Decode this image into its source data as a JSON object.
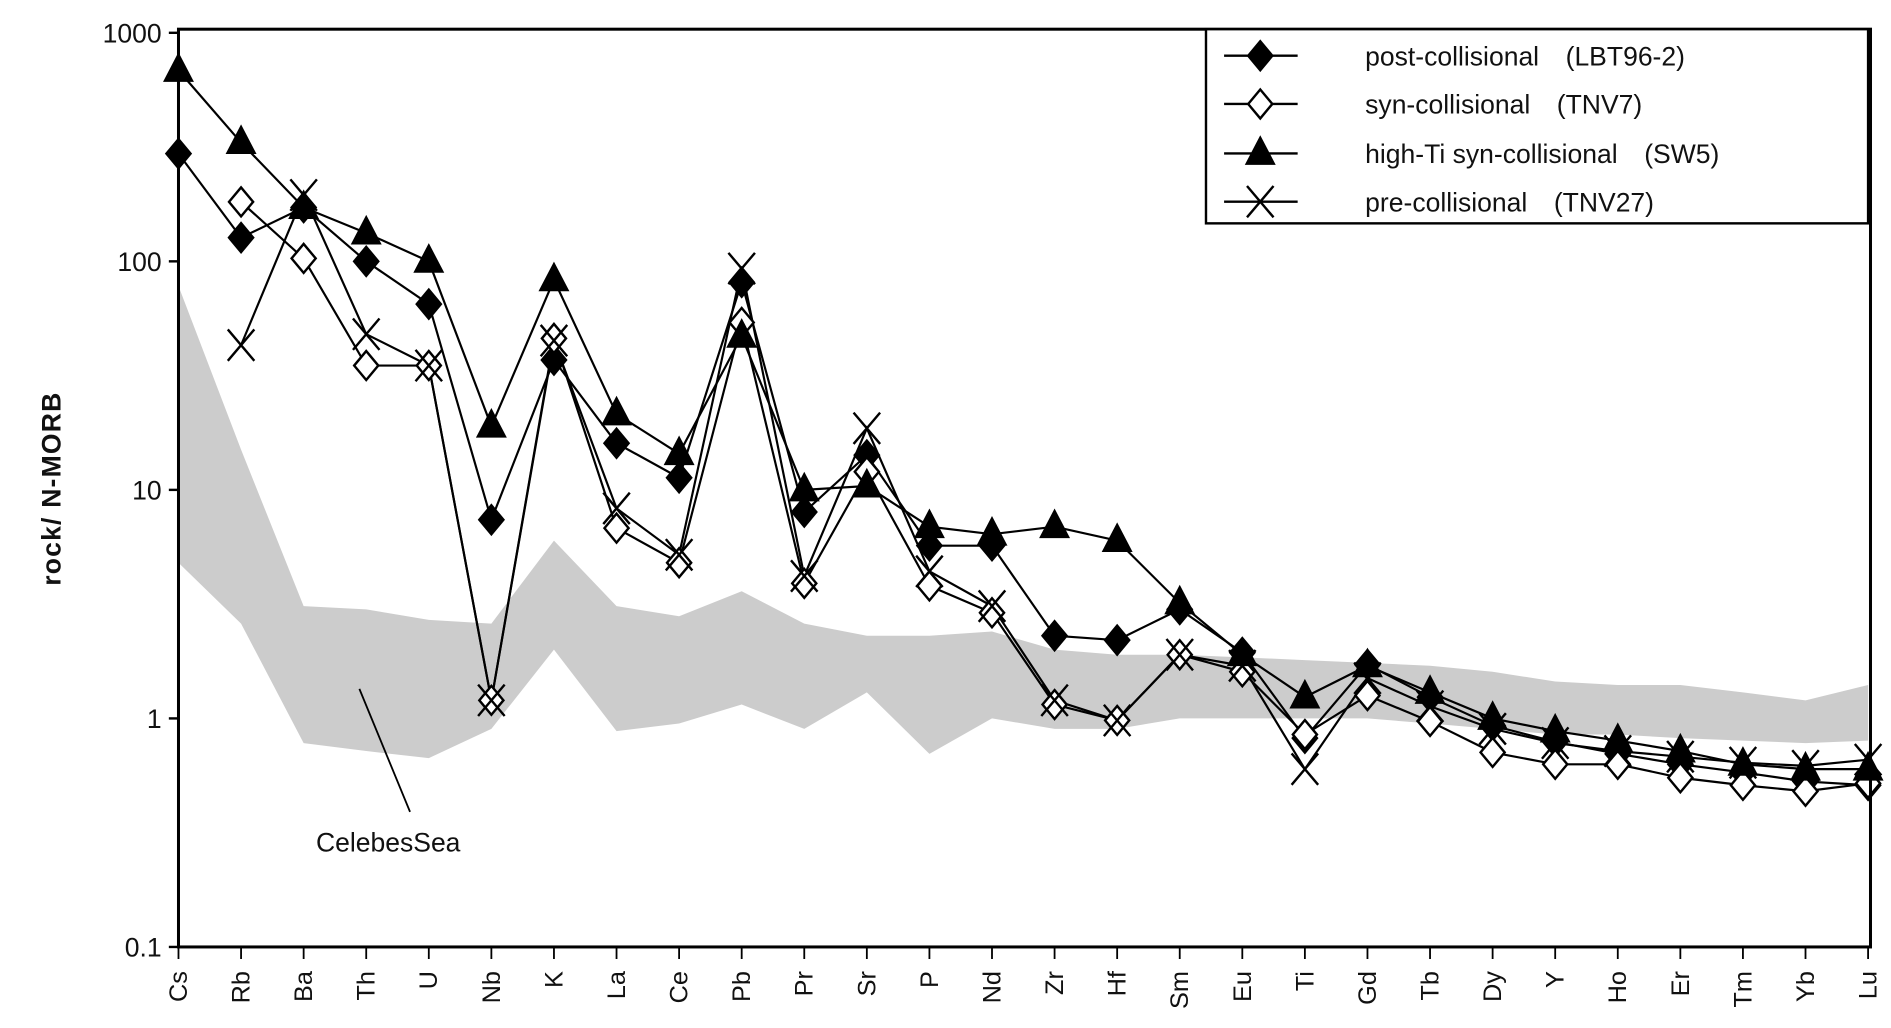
{
  "chart_data": {
    "type": "line",
    "title": "",
    "xlabel": "",
    "ylabel": "rock/ N-MORB",
    "yscale": "log",
    "ylim": [
      0.1,
      1000
    ],
    "yticks": [
      "1000",
      "100",
      "10",
      "1",
      "0.1"
    ],
    "grid": false,
    "legend_position": "top-right",
    "categories": [
      "Cs",
      "Rb",
      "Ba",
      "Th",
      "U",
      "Nb",
      "K",
      "La",
      "Ce",
      "Pb",
      "Pr",
      "Sr",
      "P",
      "Nd",
      "Zr",
      "Hf",
      "Sm",
      "Eu",
      "Ti",
      "Gd",
      "Tb",
      "Dy",
      "Y",
      "Ho",
      "Er",
      "Tm",
      "Yb",
      "Lu"
    ],
    "series": [
      {
        "name": "post-collisional",
        "sample": "(LBT96-2)",
        "marker": "filled-diamond",
        "values": [
          296,
          127,
          172,
          100,
          65,
          7.4,
          37,
          16,
          11.3,
          81,
          8,
          14.2,
          5.7,
          5.7,
          2.3,
          2.2,
          3.0,
          1.94,
          0.82,
          1.72,
          1.24,
          0.93,
          0.79,
          0.7,
          0.63,
          0.58,
          0.53,
          0.51
        ]
      },
      {
        "name": "syn-collisional",
        "sample": "(TNV7)",
        "marker": "open-diamond",
        "values": [
          null,
          182,
          103,
          35,
          35,
          1.2,
          46,
          6.8,
          4.8,
          54,
          3.9,
          12,
          3.8,
          2.9,
          1.15,
          0.98,
          1.9,
          1.6,
          0.85,
          1.26,
          0.97,
          0.71,
          0.63,
          0.63,
          0.55,
          0.51,
          0.48,
          0.52
        ]
      },
      {
        "name": "high-Ti  syn-collisional",
        "sample": "(SW5)",
        "marker": "filled-triangle",
        "values": [
          685,
          331,
          172,
          133,
          100,
          19,
          83,
          21.5,
          14.4,
          47,
          10,
          10.4,
          6.9,
          6.4,
          6.9,
          6.0,
          3.2,
          1.9,
          1.24,
          1.7,
          1.3,
          1.0,
          0.88,
          0.8,
          0.72,
          0.63,
          0.6,
          0.6
        ]
      },
      {
        "name": "pre-collisional",
        "sample": "(TNV27)",
        "marker": "x",
        "values": [
          null,
          43,
          195,
          48,
          35,
          1.2,
          45,
          8.3,
          5.2,
          93,
          4.2,
          18.6,
          4.4,
          3.1,
          1.2,
          0.98,
          1.9,
          1.7,
          0.6,
          1.5,
          1.13,
          0.9,
          0.78,
          0.72,
          0.68,
          0.64,
          0.62,
          0.66
        ]
      }
    ],
    "band": {
      "name": "CelebesSea",
      "color": "#cccccc",
      "upper": [
        78,
        15,
        3.1,
        3.0,
        2.7,
        2.6,
        6.0,
        3.1,
        2.8,
        3.6,
        2.6,
        2.3,
        2.3,
        2.4,
        2.0,
        1.9,
        1.9,
        1.85,
        1.8,
        1.75,
        1.7,
        1.6,
        1.45,
        1.4,
        1.4,
        1.3,
        1.2,
        1.4
      ],
      "lower": [
        4.8,
        2.6,
        0.78,
        0.72,
        0.67,
        0.9,
        2.0,
        0.88,
        0.95,
        1.15,
        0.9,
        1.3,
        0.7,
        1.0,
        0.9,
        0.9,
        1.0,
        1.0,
        1.0,
        1.0,
        0.95,
        0.9,
        0.85,
        0.85,
        0.82,
        0.8,
        0.78,
        0.8
      ]
    },
    "annotation": "CelebesSea"
  }
}
